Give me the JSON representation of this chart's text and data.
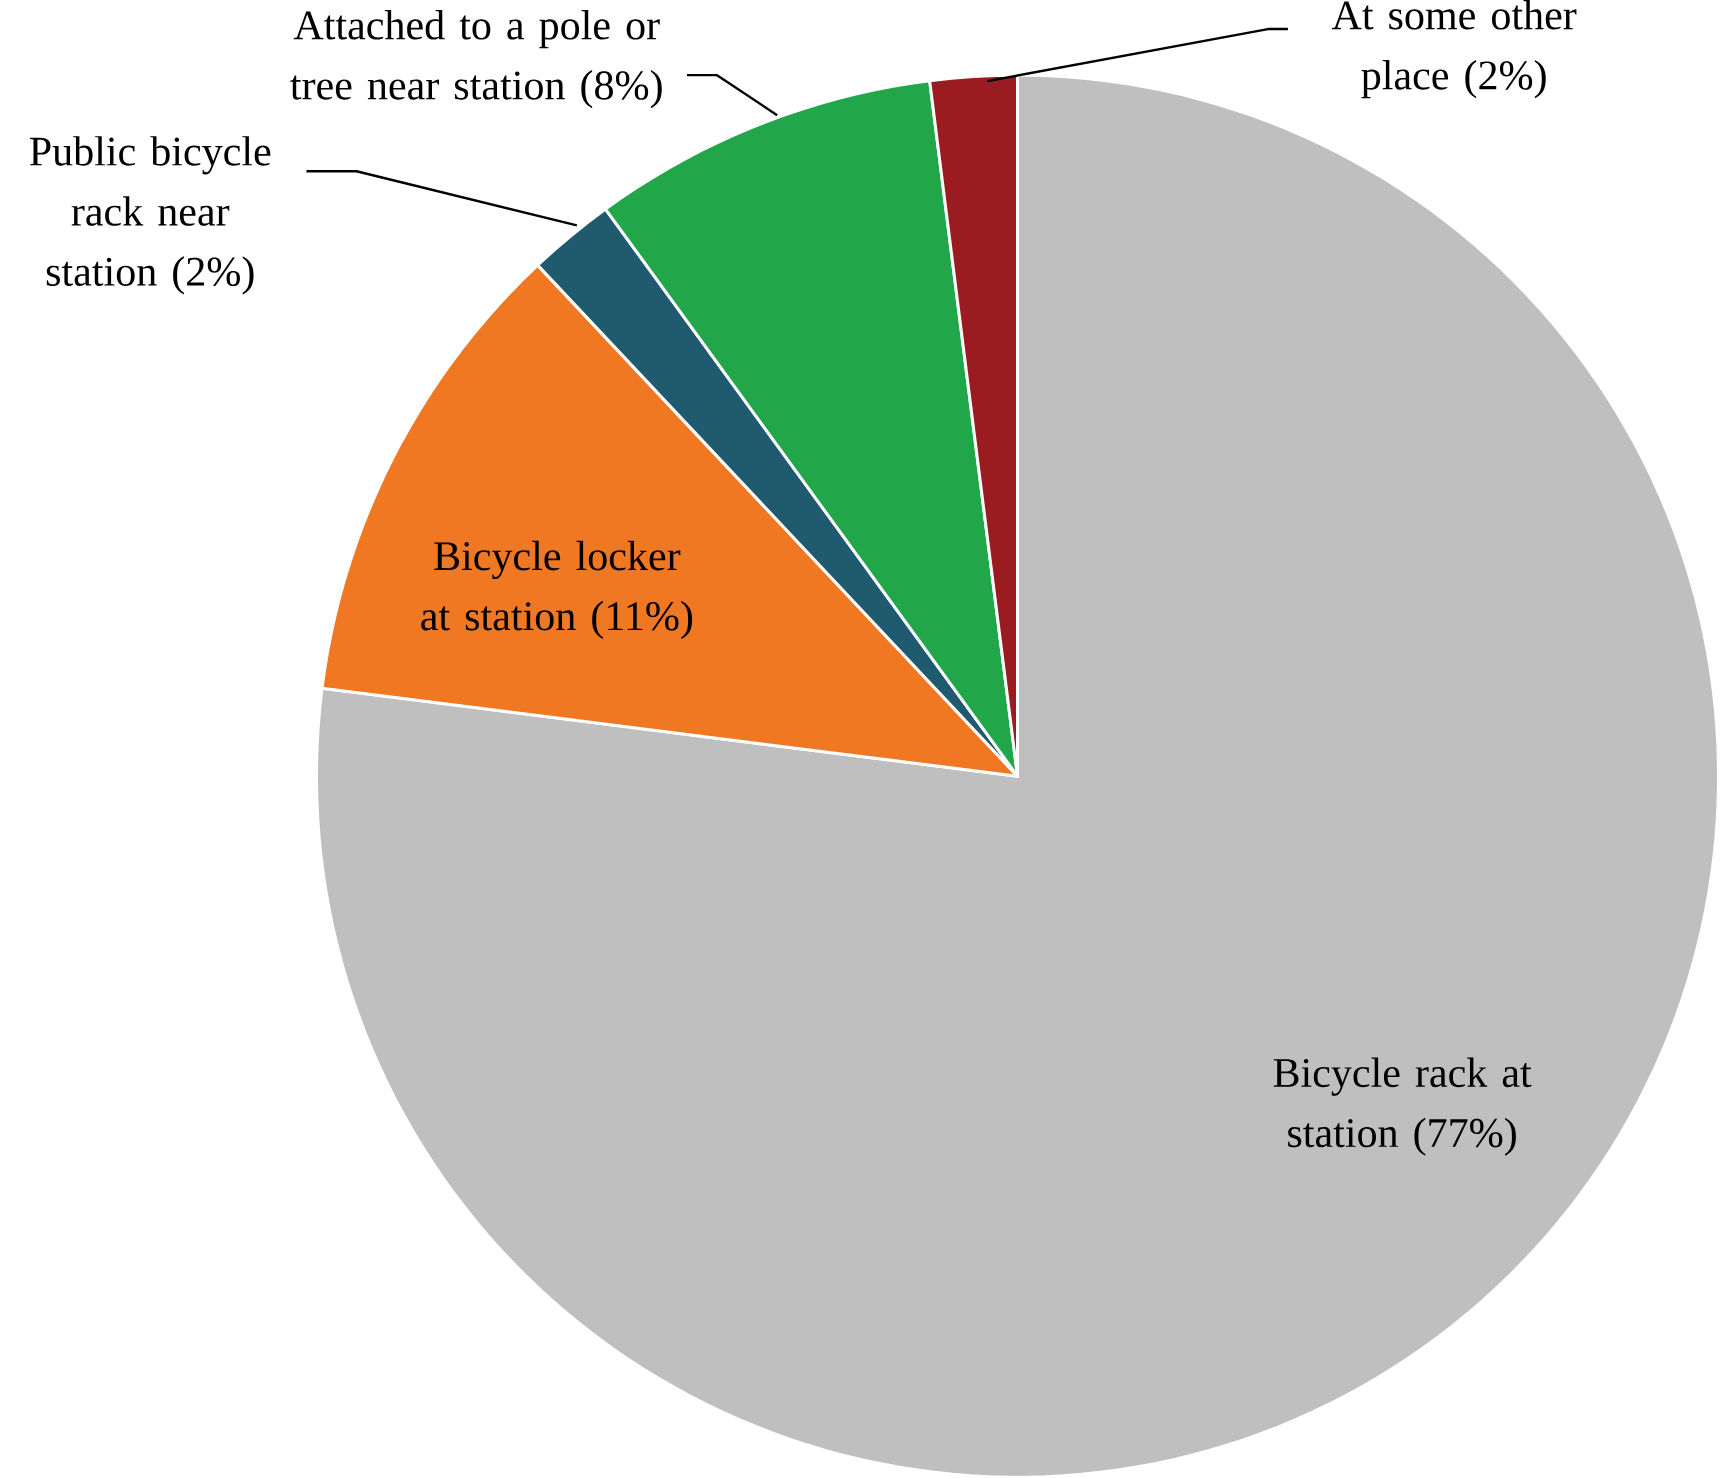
{
  "chart_data": {
    "type": "pie",
    "categories": [
      "Bicycle rack at station (77%)",
      "Bicycle locker at station (11%)",
      "Public bicycle rack near station (2%)",
      "Attached to a pole or tree near station (8%)",
      "At some other place (2%)"
    ],
    "values": [
      77,
      11,
      2,
      8,
      2
    ],
    "colors": [
      "#bfbfbf",
      "#f07823",
      "#1f5a6e",
      "#22a64a",
      "#9b1c20"
    ]
  }
}
